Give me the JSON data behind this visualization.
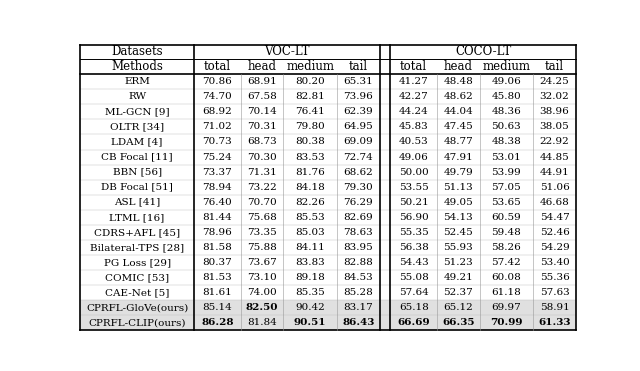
{
  "rows": [
    [
      "ERM",
      "70.86",
      "68.91",
      "80.20",
      "65.31",
      "",
      "41.27",
      "48.48",
      "49.06",
      "24.25"
    ],
    [
      "RW",
      "74.70",
      "67.58",
      "82.81",
      "73.96",
      "",
      "42.27",
      "48.62",
      "45.80",
      "32.02"
    ],
    [
      "ML-GCN [9]",
      "68.92",
      "70.14",
      "76.41",
      "62.39",
      "",
      "44.24",
      "44.04",
      "48.36",
      "38.96"
    ],
    [
      "OLTR [34]",
      "71.02",
      "70.31",
      "79.80",
      "64.95",
      "",
      "45.83",
      "47.45",
      "50.63",
      "38.05"
    ],
    [
      "LDAM [4]",
      "70.73",
      "68.73",
      "80.38",
      "69.09",
      "",
      "40.53",
      "48.77",
      "48.38",
      "22.92"
    ],
    [
      "CB Focal [11]",
      "75.24",
      "70.30",
      "83.53",
      "72.74",
      "",
      "49.06",
      "47.91",
      "53.01",
      "44.85"
    ],
    [
      "BBN [56]",
      "73.37",
      "71.31",
      "81.76",
      "68.62",
      "",
      "50.00",
      "49.79",
      "53.99",
      "44.91"
    ],
    [
      "DB Focal [51]",
      "78.94",
      "73.22",
      "84.18",
      "79.30",
      "",
      "53.55",
      "51.13",
      "57.05",
      "51.06"
    ],
    [
      "ASL [41]",
      "76.40",
      "70.70",
      "82.26",
      "76.29",
      "",
      "50.21",
      "49.05",
      "53.65",
      "46.68"
    ],
    [
      "LTML [16]",
      "81.44",
      "75.68",
      "85.53",
      "82.69",
      "",
      "56.90",
      "54.13",
      "60.59",
      "54.47"
    ],
    [
      "CDRS+AFL [45]",
      "78.96",
      "73.35",
      "85.03",
      "78.63",
      "",
      "55.35",
      "52.45",
      "59.48",
      "52.46"
    ],
    [
      "Bilateral-TPS [28]",
      "81.58",
      "75.88",
      "84.11",
      "83.95",
      "",
      "56.38",
      "55.93",
      "58.26",
      "54.29"
    ],
    [
      "PG Loss [29]",
      "80.37",
      "73.67",
      "83.83",
      "82.88",
      "",
      "54.43",
      "51.23",
      "57.42",
      "53.40"
    ],
    [
      "COMIC [53]",
      "81.53",
      "73.10",
      "89.18",
      "84.53",
      "",
      "55.08",
      "49.21",
      "60.08",
      "55.36"
    ],
    [
      "CAE-Net [5]",
      "81.61",
      "74.00",
      "85.35",
      "85.28",
      "",
      "57.64",
      "52.37",
      "61.18",
      "57.63"
    ],
    [
      "CPRFL-GloVe(ours)",
      "85.14",
      "82.50",
      "90.42",
      "83.17",
      "",
      "65.18",
      "65.12",
      "69.97",
      "58.91"
    ],
    [
      "CPRFL-CLIP(ours)",
      "86.28",
      "81.84",
      "90.51",
      "86.43",
      "",
      "66.69",
      "66.35",
      "70.99",
      "61.33"
    ]
  ],
  "bold_glove": [
    1
  ],
  "bold_clip": [
    0,
    2,
    3,
    5,
    6,
    7,
    8
  ],
  "bg_last2": "#e0e0e0",
  "bg_white": "#ffffff",
  "line_color": "#000000",
  "font_size": 7.5,
  "header_font_size": 8.5,
  "col_labels": [
    "Methods",
    "total",
    "head",
    "medium",
    "tail",
    "",
    "total",
    "head",
    "medium",
    "tail"
  ],
  "dataset_label": "Datasets",
  "voc_label": "VOC-LT",
  "coco_label": "COCO-LT",
  "col_widths": [
    1.6,
    0.65,
    0.6,
    0.75,
    0.6,
    0.15,
    0.65,
    0.6,
    0.75,
    0.6
  ]
}
